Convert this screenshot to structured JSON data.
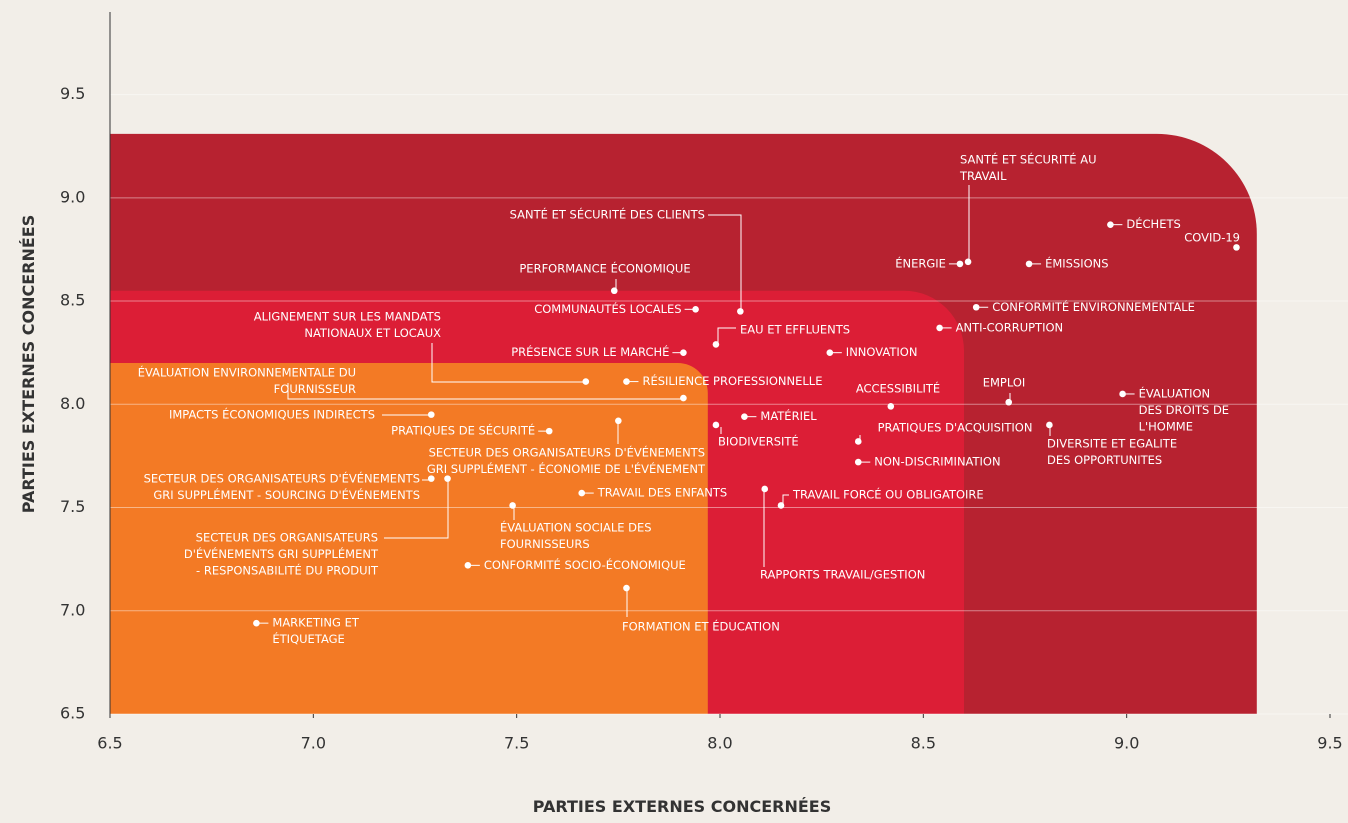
{
  "chart_data": {
    "type": "scatter",
    "xlabel": "PARTIES EXTERNES CONCERNÉES",
    "ylabel": "PARTIES EXTERNES CONCERNÉES",
    "xlim": [
      6.5,
      9.5
    ],
    "ylim": [
      6.5,
      9.9
    ],
    "xticks": [
      6.5,
      {
        "value": 7,
        "label": "7.0"
      },
      7.5,
      {
        "value": 8,
        "label": "8.0"
      },
      8.5,
      {
        "value": 9,
        "label": "9.0"
      },
      9.5
    ],
    "yticks": [
      6.5,
      {
        "value": 7,
        "label": "7.0"
      },
      7.5,
      {
        "value": 8,
        "label": "8.0"
      },
      8.5,
      {
        "value": 9,
        "label": "9.0"
      },
      9.5
    ],
    "grid": true,
    "zones": [
      {
        "color": "#b72230",
        "xmax": 9.32,
        "ymax": 9.31
      },
      {
        "color": "#dc1e36",
        "xmax": 8.6,
        "ymax": 8.55
      },
      {
        "color": "#f37a25",
        "xmax": 7.97,
        "ymax": 8.2
      }
    ],
    "points": [
      {
        "label": [
          "SANTÉ ET SÉCURITÉ AU",
          "TRAVAIL"
        ],
        "x": 8.61,
        "y": 8.69
      },
      {
        "label": [
          "DÉCHETS"
        ],
        "x": 8.96,
        "y": 8.87
      },
      {
        "label": [
          "COVID-19"
        ],
        "x": 9.27,
        "y": 8.76
      },
      {
        "label": [
          "ÉNERGIE"
        ],
        "x": 8.59,
        "y": 8.68
      },
      {
        "label": [
          "ÉMISSIONS"
        ],
        "x": 8.76,
        "y": 8.68
      },
      {
        "label": [
          "SANTÉ ET SÉCURITÉ DES CLIENTS"
        ],
        "x": 8.05,
        "y": 8.45
      },
      {
        "label": [
          "PERFORMANCE ÉCONOMIQUE"
        ],
        "x": 7.74,
        "y": 8.55
      },
      {
        "label": [
          "COMMUNAUTÉS LOCALES"
        ],
        "x": 7.94,
        "y": 8.46
      },
      {
        "label": [
          "CONFORMITÉ ENVIRONNEMENTALE"
        ],
        "x": 8.63,
        "y": 8.47
      },
      {
        "label": [
          "ALIGNEMENT SUR LES MANDATS",
          "NATIONAUX ET LOCAUX"
        ],
        "x": 7.67,
        "y": 8.11
      },
      {
        "label": [
          "EAU ET EFFLUENTS"
        ],
        "x": 7.99,
        "y": 8.29
      },
      {
        "label": [
          "ANTI-CORRUPTION"
        ],
        "x": 8.54,
        "y": 8.37
      },
      {
        "label": [
          "PRÉSENCE SUR LE MARCHÉ"
        ],
        "x": 7.91,
        "y": 8.25
      },
      {
        "label": [
          "INNOVATION"
        ],
        "x": 8.27,
        "y": 8.25
      },
      {
        "label": [
          "ÉVALUATION ENVIRONNEMENTALE DU",
          "FOURNISSEUR"
        ],
        "x": 7.91,
        "y": 8.03
      },
      {
        "label": [
          "RÉSILIENCE PROFESSIONNELLE"
        ],
        "x": 7.77,
        "y": 8.11
      },
      {
        "label": [
          "ACCESSIBILITÉ"
        ],
        "x": 8.42,
        "y": 7.99
      },
      {
        "label": [
          "EMPLOI"
        ],
        "x": 8.71,
        "y": 8.01
      },
      {
        "label": [
          "ÉVALUATION",
          "DES DROITS DE",
          "L'HOMME"
        ],
        "x": 8.99,
        "y": 8.05
      },
      {
        "label": [
          "IMPACTS ÉCONOMIQUES INDIRECTS"
        ],
        "x": 7.29,
        "y": 7.95
      },
      {
        "label": [
          "MATÉRIEL"
        ],
        "x": 8.06,
        "y": 7.94
      },
      {
        "label": [
          "PRATIQUES DE SÉCURITÉ"
        ],
        "x": 7.58,
        "y": 7.87
      },
      {
        "label": [
          "SECTEUR DES ORGANISATEURS D'ÉVÉNEMENTS",
          "GRI SUPPLÉMENT - ÉCONOMIE DE L'ÉVÉNEMENT"
        ],
        "x": 7.75,
        "y": 7.92
      },
      {
        "label": [
          "BIODIVERSITÉ"
        ],
        "x": 7.99,
        "y": 7.9
      },
      {
        "label": [
          "PRATIQUES D'ACQUISITION"
        ],
        "x": 8.34,
        "y": 7.82
      },
      {
        "label": [
          "DIVERSITE ET EGALITE",
          "DES OPPORTUNITES"
        ],
        "x": 8.81,
        "y": 7.9
      },
      {
        "label": [
          "NON-DISCRIMINATION"
        ],
        "x": 8.34,
        "y": 7.72
      },
      {
        "label": [
          "SECTEUR DES ORGANISATEURS D'ÉVÉNEMENTS",
          "GRI SUPPLÉMENT - SOURCING D'ÉVÉNEMENTS"
        ],
        "x": 7.29,
        "y": 7.64
      },
      {
        "label": [
          "SECTEUR DES ORGANISATEURS",
          "D'ÉVÉNEMENTS GRI SUPPLÉMENT",
          "- RESPONSABILITÉ DU PRODUIT"
        ],
        "x": 7.33,
        "y": 7.64
      },
      {
        "label": [
          "TRAVAIL DES ENFANTS"
        ],
        "x": 7.66,
        "y": 7.57
      },
      {
        "label": [
          "TRAVAIL FORCÉ OU OBLIGATOIRE"
        ],
        "x": 8.15,
        "y": 7.51
      },
      {
        "label": [
          "RAPPORTS TRAVAIL/GESTION"
        ],
        "x": 8.11,
        "y": 7.59
      },
      {
        "label": [
          "ÉVALUATION SOCIALE DES",
          "FOURNISSEURS"
        ],
        "x": 7.49,
        "y": 7.51
      },
      {
        "label": [
          "CONFORMITÉ SOCIO-ÉCONOMIQUE"
        ],
        "x": 7.38,
        "y": 7.22
      },
      {
        "label": [
          "FORMATION ET ÉDUCATION"
        ],
        "x": 7.77,
        "y": 7.11
      },
      {
        "label": [
          "MARKETING ET",
          "ÉTIQUETAGE"
        ],
        "x": 6.86,
        "y": 6.94
      }
    ]
  }
}
